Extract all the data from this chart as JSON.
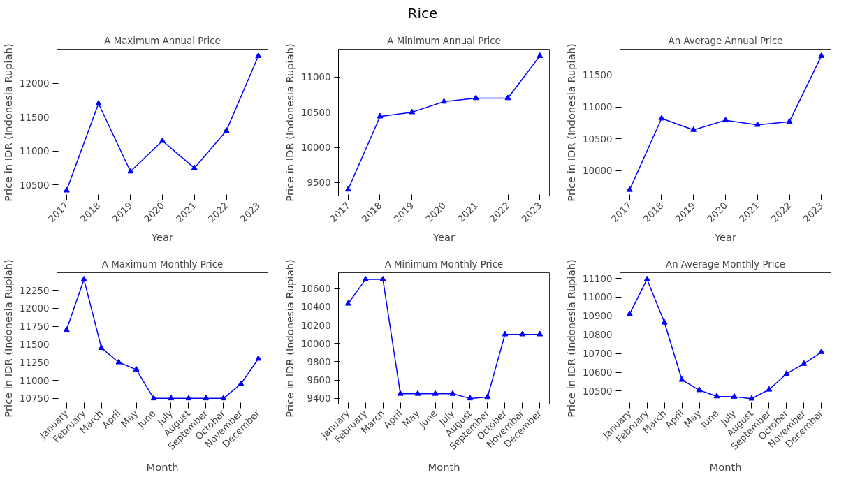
{
  "chart_data": [
    {
      "type": "line",
      "title": "A Maximum Annual Price",
      "annotations": [
        "Rice"
      ],
      "xlabel": "Year",
      "ylabel": "Price in IDR (Indonesia Rupiah)",
      "categories": [
        "2017",
        "2018",
        "2019",
        "2020",
        "2021",
        "2022",
        "2023"
      ],
      "series": [
        {
          "color": "#0000ff",
          "values": [
            10420,
            11700,
            10700,
            11150,
            10750,
            11300,
            12400
          ]
        }
      ],
      "ylim": [
        10340,
        12500
      ],
      "yticks": [
        10500,
        11000,
        11500,
        12000
      ],
      "grid": false,
      "marker": "triangle",
      "line_style": "solid"
    },
    {
      "type": "line",
      "title": "A Minimum Annual Price",
      "xlabel": "Year",
      "ylabel": "Price in IDR (Indonesia Rupiah)",
      "categories": [
        "2017",
        "2018",
        "2019",
        "2020",
        "2021",
        "2022",
        "2023"
      ],
      "series": [
        {
          "color": "#0000ff",
          "values": [
            9400,
            10440,
            10500,
            10650,
            10700,
            10700,
            11300
          ]
        }
      ],
      "ylim": [
        9310,
        11395
      ],
      "yticks": [
        9500,
        10000,
        10500,
        11000
      ],
      "grid": false,
      "marker": "triangle",
      "line_style": "solid"
    },
    {
      "type": "line",
      "title": "An Average Annual Price",
      "xlabel": "Year",
      "ylabel": "Price in IDR (Indonesia Rupiah)",
      "categories": [
        "2017",
        "2018",
        "2019",
        "2020",
        "2021",
        "2022",
        "2023"
      ],
      "series": [
        {
          "color": "#0000ff",
          "values": [
            9700,
            10820,
            10640,
            10790,
            10720,
            10770,
            11800
          ]
        }
      ],
      "ylim": [
        9605,
        11905
      ],
      "yticks": [
        10000,
        10500,
        11000,
        11500
      ],
      "grid": false,
      "marker": "triangle",
      "line_style": "solid"
    },
    {
      "type": "line",
      "title": "A Maximum Monthly Price",
      "xlabel": "Month",
      "ylabel": "Price in IDR (Indonesia Rupiah)",
      "categories": [
        "January",
        "February",
        "March",
        "April",
        "May",
        "June",
        "July",
        "August",
        "September",
        "October",
        "November",
        "December"
      ],
      "series": [
        {
          "color": "#0000ff",
          "values": [
            11700,
            12400,
            11450,
            11250,
            11150,
            10750,
            10750,
            10750,
            10750,
            10750,
            10950,
            11300
          ]
        }
      ],
      "ylim": [
        10671,
        12493
      ],
      "yticks": [
        10750,
        11000,
        11250,
        11500,
        11750,
        12000,
        12250
      ],
      "grid": false,
      "marker": "triangle",
      "line_style": "solid"
    },
    {
      "type": "line",
      "title": "A Minimum Monthly Price",
      "xlabel": "Month",
      "ylabel": "Price in IDR (Indonesia Rupiah)",
      "categories": [
        "January",
        "February",
        "March",
        "April",
        "May",
        "June",
        "July",
        "August",
        "September",
        "October",
        "November",
        "December"
      ],
      "series": [
        {
          "color": "#0000ff",
          "values": [
            10435,
            10700,
            10700,
            9450,
            9450,
            9450,
            9450,
            9400,
            9415,
            10100,
            10100,
            10100
          ]
        }
      ],
      "ylim": [
        9338,
        10773
      ],
      "yticks": [
        9400,
        9600,
        9800,
        10000,
        10200,
        10400,
        10600
      ],
      "grid": false,
      "marker": "triangle",
      "line_style": "solid"
    },
    {
      "type": "line",
      "title": "An Average Monthly Price",
      "xlabel": "Month",
      "ylabel": "Price in IDR (Indonesia Rupiah)",
      "categories": [
        "January",
        "February",
        "March",
        "April",
        "May",
        "June",
        "July",
        "August",
        "September",
        "October",
        "November",
        "December"
      ],
      "series": [
        {
          "color": "#0000ff",
          "values": [
            10910,
            11095,
            10865,
            10560,
            10505,
            10472,
            10470,
            10460,
            10508,
            10592,
            10645,
            10708
          ]
        }
      ],
      "ylim": [
        10431,
        11130
      ],
      "yticks": [
        10500,
        10600,
        10700,
        10800,
        10900,
        11000,
        11100
      ],
      "grid": false,
      "marker": "triangle",
      "line_style": "solid"
    }
  ]
}
